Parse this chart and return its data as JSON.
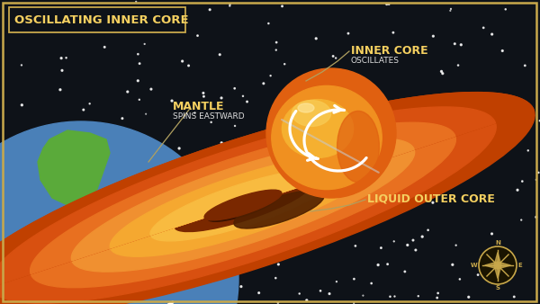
{
  "bg_color": "#0e1218",
  "border_color": "#c8a84b",
  "title": "OSCILLATING INNER CORE",
  "title_color": "#f5d060",
  "title_box_bg": "#0e1218",
  "star_color": "#ffffff",
  "earth_blue": "#4a80b8",
  "earth_green": "#5aaa3a",
  "mantle_c1": "#c04000",
  "mantle_c2": "#d85010",
  "mantle_c3": "#e87020",
  "mantle_c4": "#f09030",
  "mantle_c5": "#f5a830",
  "mantle_c6": "#f8bb40",
  "mantle_hole": "#7a2800",
  "mantle_edge": "#a03500",
  "ic_base": "#e06010",
  "ic_mid": "#f09020",
  "ic_light": "#f5b030",
  "ic_highlight": "#f8c850",
  "ic_shadow": "#502000",
  "ic_shine_line": "#d0d0d0",
  "arrow_color": "#ffffff",
  "label_main": "#f5d060",
  "label_sub": "#e0e0e0",
  "leader_color": "#b0a060",
  "compass_color": "#c8a84b",
  "compass_bg": "#1a1400",
  "mantle_label": "MANTLE",
  "mantle_sublabel": "SPINS EASTWARD",
  "inner_core_label": "INNER CORE",
  "inner_core_sublabel": "OSCILLATES",
  "outer_core_label": "LIQUID OUTER CORE"
}
